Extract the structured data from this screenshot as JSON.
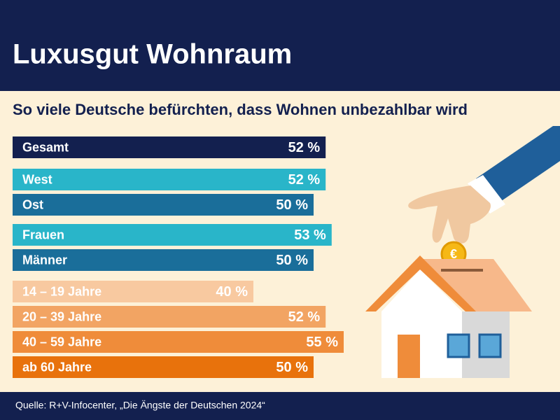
{
  "chart_data": {
    "type": "bar",
    "title": "Luxusgut Wohnraum",
    "subtitle": "So viele Deutsche befürchten, dass Wohnen unbezahlbar wird",
    "source": "Quelle: R+V-Infocenter, „Die Ängste der Deutschen 2024“",
    "categories": [
      "Gesamt",
      "West",
      "Ost",
      "Frauen",
      "Männer",
      "14 – 19 Jahre",
      "20 – 39 Jahre",
      "40 – 59 Jahre",
      "ab 60 Jahre"
    ],
    "values": [
      52,
      52,
      50,
      53,
      50,
      40,
      52,
      55,
      50
    ],
    "value_labels": [
      "52 %",
      "52 %",
      "50 %",
      "53 %",
      "50 %",
      "40 %",
      "52 %",
      "55 %",
      "50 %"
    ],
    "colors": [
      "#13204f",
      "#29b5c9",
      "#1a6e9a",
      "#29b5c9",
      "#1a6e9a",
      "#f8c9a0",
      "#f2a463",
      "#ef8c3a",
      "#e8720c"
    ]
  }
}
